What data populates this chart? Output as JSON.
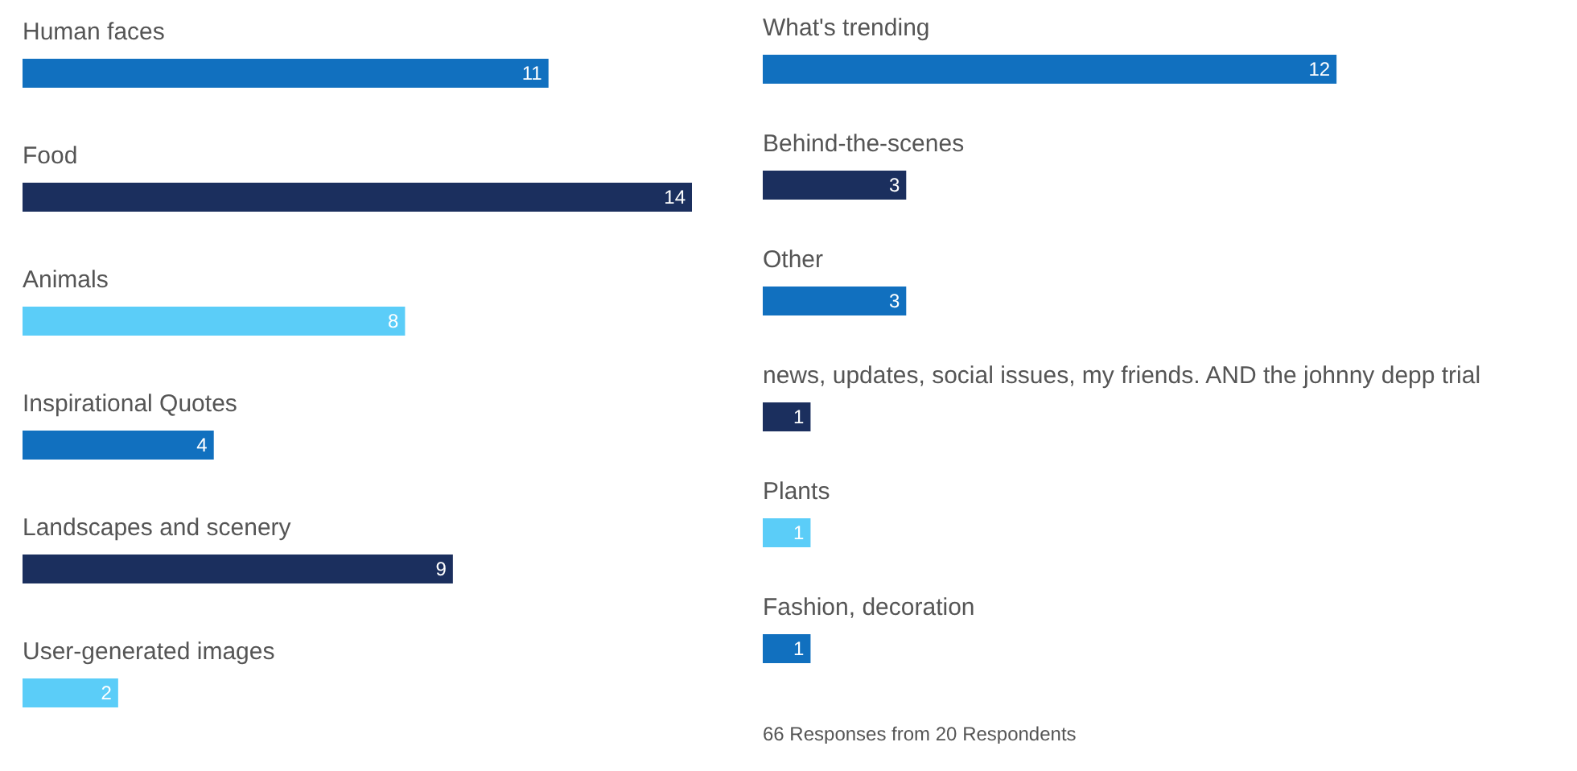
{
  "chart_data": [
    {
      "type": "bar",
      "orientation": "horizontal",
      "data_labels": true,
      "categories": [
        "Human faces",
        "Food",
        "Animals",
        "Inspirational Quotes",
        "Landscapes and scenery",
        "User-generated images"
      ],
      "values": [
        11,
        14,
        8,
        4,
        9,
        2
      ],
      "colors": [
        "#1170bf",
        "#1b2f5e",
        "#5bcdf8",
        "#1170bf",
        "#1b2f5e",
        "#5bcdf8"
      ]
    },
    {
      "type": "bar",
      "orientation": "horizontal",
      "data_labels": true,
      "categories": [
        "What's trending",
        "Behind-the-scenes",
        "Other",
        "news, updates, social issues, my friends. AND the johnny depp trial",
        "Plants",
        "Fashion, decoration"
      ],
      "values": [
        12,
        3,
        3,
        1,
        1,
        1
      ],
      "colors": [
        "#1170bf",
        "#1b2f5e",
        "#1170bf",
        "#1b2f5e",
        "#5bcdf8",
        "#1170bf"
      ],
      "annotations": [
        "66 Responses from 20 Respondents"
      ]
    }
  ]
}
